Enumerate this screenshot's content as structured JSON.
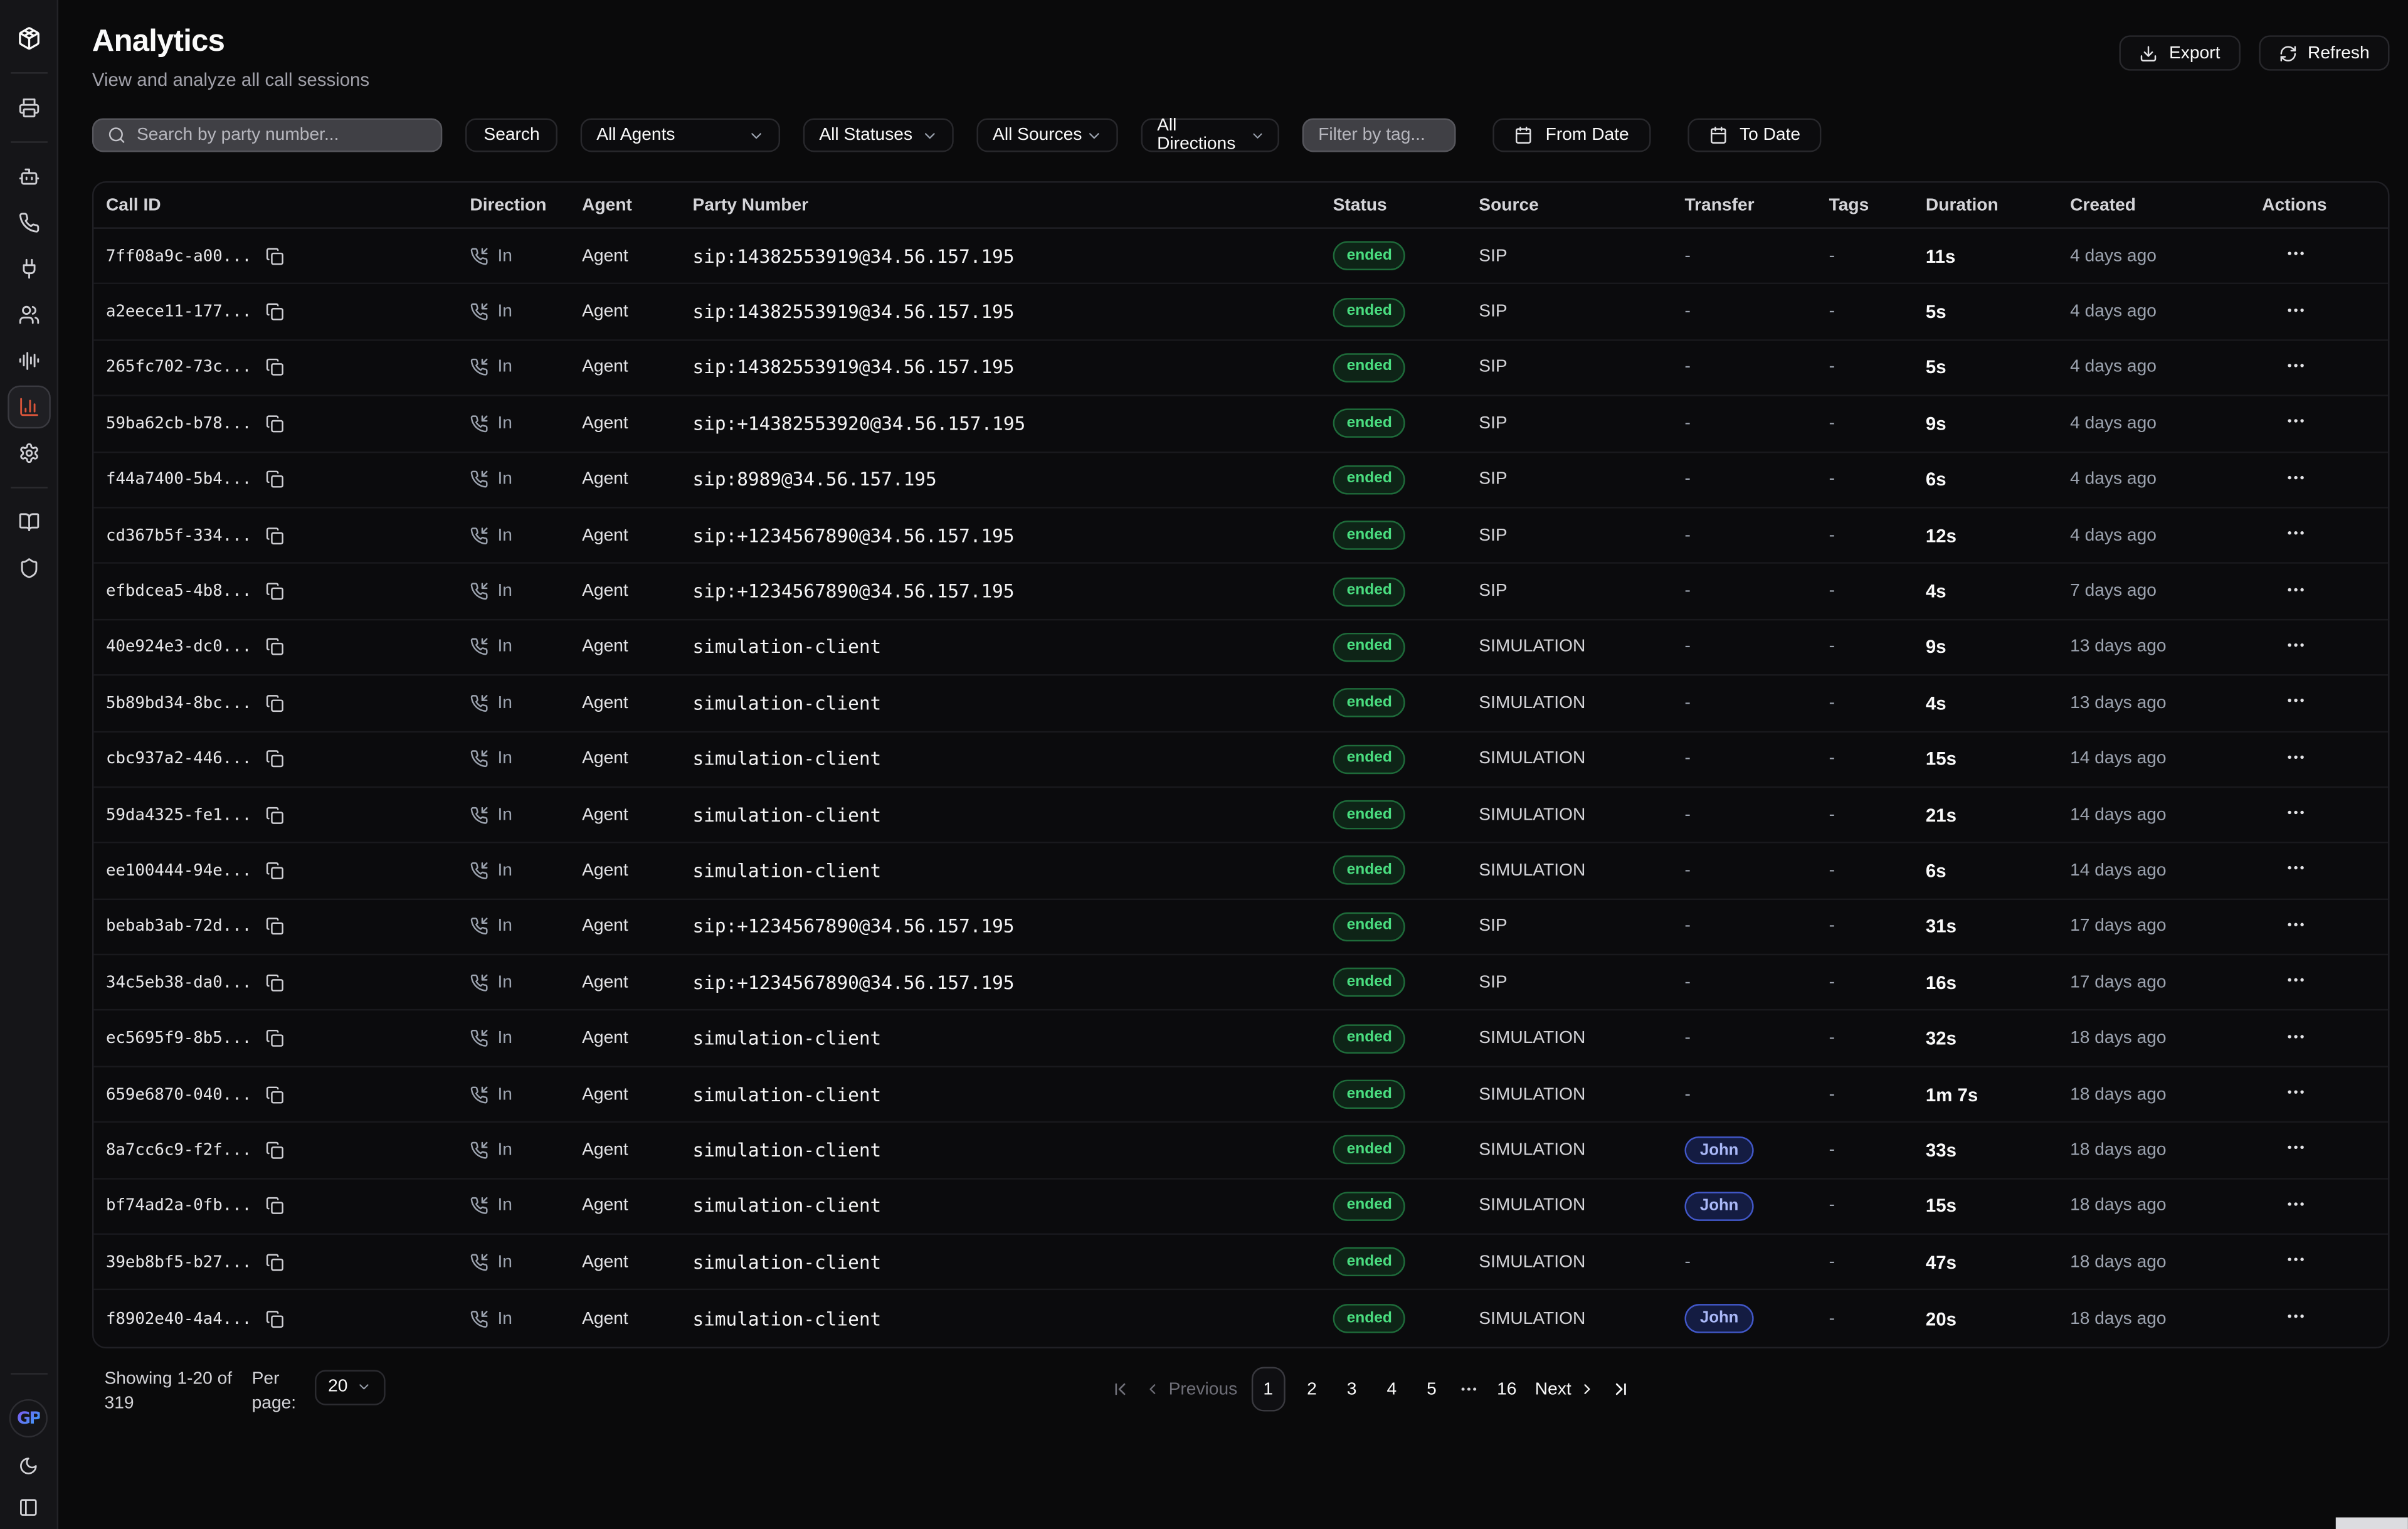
{
  "colors": {
    "accent_active_icon": "#d9553a",
    "status_ended_text": "#4ade80",
    "status_ended_border": "#1e6b3a",
    "transfer_badge_text": "#aab8f7",
    "transfer_badge_border": "#4157c8",
    "brand_gradient_start": "#7c5cf0",
    "brand_gradient_end": "#3aa0f8",
    "page_background": "#0a0a0b",
    "sidebar_background": "#151518"
  },
  "sidebar": {
    "items": [
      {
        "id": "logo",
        "icon": "app-logo-icon",
        "type": "logo"
      },
      {
        "type": "divider"
      },
      {
        "id": "fax",
        "icon": "fax-icon"
      },
      {
        "type": "divider"
      },
      {
        "id": "bot",
        "icon": "bot-icon"
      },
      {
        "id": "calls",
        "icon": "phone-icon"
      },
      {
        "id": "integrations",
        "icon": "plug-icon"
      },
      {
        "id": "users",
        "icon": "users-icon"
      },
      {
        "id": "voice",
        "icon": "audio-waveform-icon"
      },
      {
        "id": "analytics",
        "icon": "bar-chart-icon",
        "active": true
      },
      {
        "id": "settings",
        "icon": "gear-icon"
      },
      {
        "type": "divider"
      },
      {
        "id": "docs",
        "icon": "book-open-icon"
      },
      {
        "id": "security",
        "icon": "shield-icon"
      }
    ],
    "footer_items": [
      {
        "id": "brand",
        "icon": "gp-logo-icon",
        "text": "GP"
      },
      {
        "id": "theme-toggle",
        "icon": "moon-icon"
      },
      {
        "id": "collapse-panel",
        "icon": "panel-left-icon"
      }
    ]
  },
  "header": {
    "title": "Analytics",
    "subtitle": "View and analyze all call sessions",
    "export_label": "Export",
    "refresh_label": "Refresh"
  },
  "filters": {
    "search_placeholder": "Search by party number...",
    "search_button": "Search",
    "agents_dropdown": "All Agents",
    "statuses_dropdown": "All Statuses",
    "sources_dropdown": "All Sources",
    "directions_dropdown": "All Directions",
    "tag_placeholder": "Filter by tag...",
    "from_date": "From Date",
    "to_date": "To Date"
  },
  "table": {
    "columns": [
      "Call ID",
      "Direction",
      "Agent",
      "Party Number",
      "Status",
      "Source",
      "Transfer",
      "Tags",
      "Duration",
      "Created",
      "Actions"
    ],
    "rows": [
      {
        "call_id": "7ff08a9c-a00...",
        "direction": "In",
        "agent": "Agent",
        "party_number": "sip:14382553919@34.56.157.195",
        "status": "ended",
        "source": "SIP",
        "transfer": "-",
        "tags": "-",
        "duration": "11s",
        "created": "4 days ago"
      },
      {
        "call_id": "a2eece11-177...",
        "direction": "In",
        "agent": "Agent",
        "party_number": "sip:14382553919@34.56.157.195",
        "status": "ended",
        "source": "SIP",
        "transfer": "-",
        "tags": "-",
        "duration": "5s",
        "created": "4 days ago"
      },
      {
        "call_id": "265fc702-73c...",
        "direction": "In",
        "agent": "Agent",
        "party_number": "sip:14382553919@34.56.157.195",
        "status": "ended",
        "source": "SIP",
        "transfer": "-",
        "tags": "-",
        "duration": "5s",
        "created": "4 days ago"
      },
      {
        "call_id": "59ba62cb-b78...",
        "direction": "In",
        "agent": "Agent",
        "party_number": "sip:+14382553920@34.56.157.195",
        "status": "ended",
        "source": "SIP",
        "transfer": "-",
        "tags": "-",
        "duration": "9s",
        "created": "4 days ago"
      },
      {
        "call_id": "f44a7400-5b4...",
        "direction": "In",
        "agent": "Agent",
        "party_number": "sip:8989@34.56.157.195",
        "status": "ended",
        "source": "SIP",
        "transfer": "-",
        "tags": "-",
        "duration": "6s",
        "created": "4 days ago"
      },
      {
        "call_id": "cd367b5f-334...",
        "direction": "In",
        "agent": "Agent",
        "party_number": "sip:+1234567890@34.56.157.195",
        "status": "ended",
        "source": "SIP",
        "transfer": "-",
        "tags": "-",
        "duration": "12s",
        "created": "4 days ago"
      },
      {
        "call_id": "efbdcea5-4b8...",
        "direction": "In",
        "agent": "Agent",
        "party_number": "sip:+1234567890@34.56.157.195",
        "status": "ended",
        "source": "SIP",
        "transfer": "-",
        "tags": "-",
        "duration": "4s",
        "created": "7 days ago"
      },
      {
        "call_id": "40e924e3-dc0...",
        "direction": "In",
        "agent": "Agent",
        "party_number": "simulation-client",
        "status": "ended",
        "source": "SIMULATION",
        "transfer": "-",
        "tags": "-",
        "duration": "9s",
        "created": "13 days ago"
      },
      {
        "call_id": "5b89bd34-8bc...",
        "direction": "In",
        "agent": "Agent",
        "party_number": "simulation-client",
        "status": "ended",
        "source": "SIMULATION",
        "transfer": "-",
        "tags": "-",
        "duration": "4s",
        "created": "13 days ago"
      },
      {
        "call_id": "cbc937a2-446...",
        "direction": "In",
        "agent": "Agent",
        "party_number": "simulation-client",
        "status": "ended",
        "source": "SIMULATION",
        "transfer": "-",
        "tags": "-",
        "duration": "15s",
        "created": "14 days ago"
      },
      {
        "call_id": "59da4325-fe1...",
        "direction": "In",
        "agent": "Agent",
        "party_number": "simulation-client",
        "status": "ended",
        "source": "SIMULATION",
        "transfer": "-",
        "tags": "-",
        "duration": "21s",
        "created": "14 days ago"
      },
      {
        "call_id": "ee100444-94e...",
        "direction": "In",
        "agent": "Agent",
        "party_number": "simulation-client",
        "status": "ended",
        "source": "SIMULATION",
        "transfer": "-",
        "tags": "-",
        "duration": "6s",
        "created": "14 days ago"
      },
      {
        "call_id": "bebab3ab-72d...",
        "direction": "In",
        "agent": "Agent",
        "party_number": "sip:+1234567890@34.56.157.195",
        "status": "ended",
        "source": "SIP",
        "transfer": "-",
        "tags": "-",
        "duration": "31s",
        "created": "17 days ago"
      },
      {
        "call_id": "34c5eb38-da0...",
        "direction": "In",
        "agent": "Agent",
        "party_number": "sip:+1234567890@34.56.157.195",
        "status": "ended",
        "source": "SIP",
        "transfer": "-",
        "tags": "-",
        "duration": "16s",
        "created": "17 days ago"
      },
      {
        "call_id": "ec5695f9-8b5...",
        "direction": "In",
        "agent": "Agent",
        "party_number": "simulation-client",
        "status": "ended",
        "source": "SIMULATION",
        "transfer": "-",
        "tags": "-",
        "duration": "32s",
        "created": "18 days ago"
      },
      {
        "call_id": "659e6870-040...",
        "direction": "In",
        "agent": "Agent",
        "party_number": "simulation-client",
        "status": "ended",
        "source": "SIMULATION",
        "transfer": "-",
        "tags": "-",
        "duration": "1m 7s",
        "created": "18 days ago"
      },
      {
        "call_id": "8a7cc6c9-f2f...",
        "direction": "In",
        "agent": "Agent",
        "party_number": "simulation-client",
        "status": "ended",
        "source": "SIMULATION",
        "transfer": "John",
        "tags": "-",
        "duration": "33s",
        "created": "18 days ago"
      },
      {
        "call_id": "bf74ad2a-0fb...",
        "direction": "In",
        "agent": "Agent",
        "party_number": "simulation-client",
        "status": "ended",
        "source": "SIMULATION",
        "transfer": "John",
        "tags": "-",
        "duration": "15s",
        "created": "18 days ago"
      },
      {
        "call_id": "39eb8bf5-b27...",
        "direction": "In",
        "agent": "Agent",
        "party_number": "simulation-client",
        "status": "ended",
        "source": "SIMULATION",
        "transfer": "-",
        "tags": "-",
        "duration": "47s",
        "created": "18 days ago"
      },
      {
        "call_id": "f8902e40-4a4...",
        "direction": "In",
        "agent": "Agent",
        "party_number": "simulation-client",
        "status": "ended",
        "source": "SIMULATION",
        "transfer": "John",
        "tags": "-",
        "duration": "20s",
        "created": "18 days ago"
      }
    ]
  },
  "pagination": {
    "showing": "Showing 1-20 of 319",
    "per_page_label": "Per page:",
    "per_page_value": "20",
    "previous_label": "Previous",
    "next_label": "Next",
    "pages": [
      "1",
      "2",
      "3",
      "4",
      "5",
      "...",
      "16"
    ],
    "active_page": "1"
  }
}
